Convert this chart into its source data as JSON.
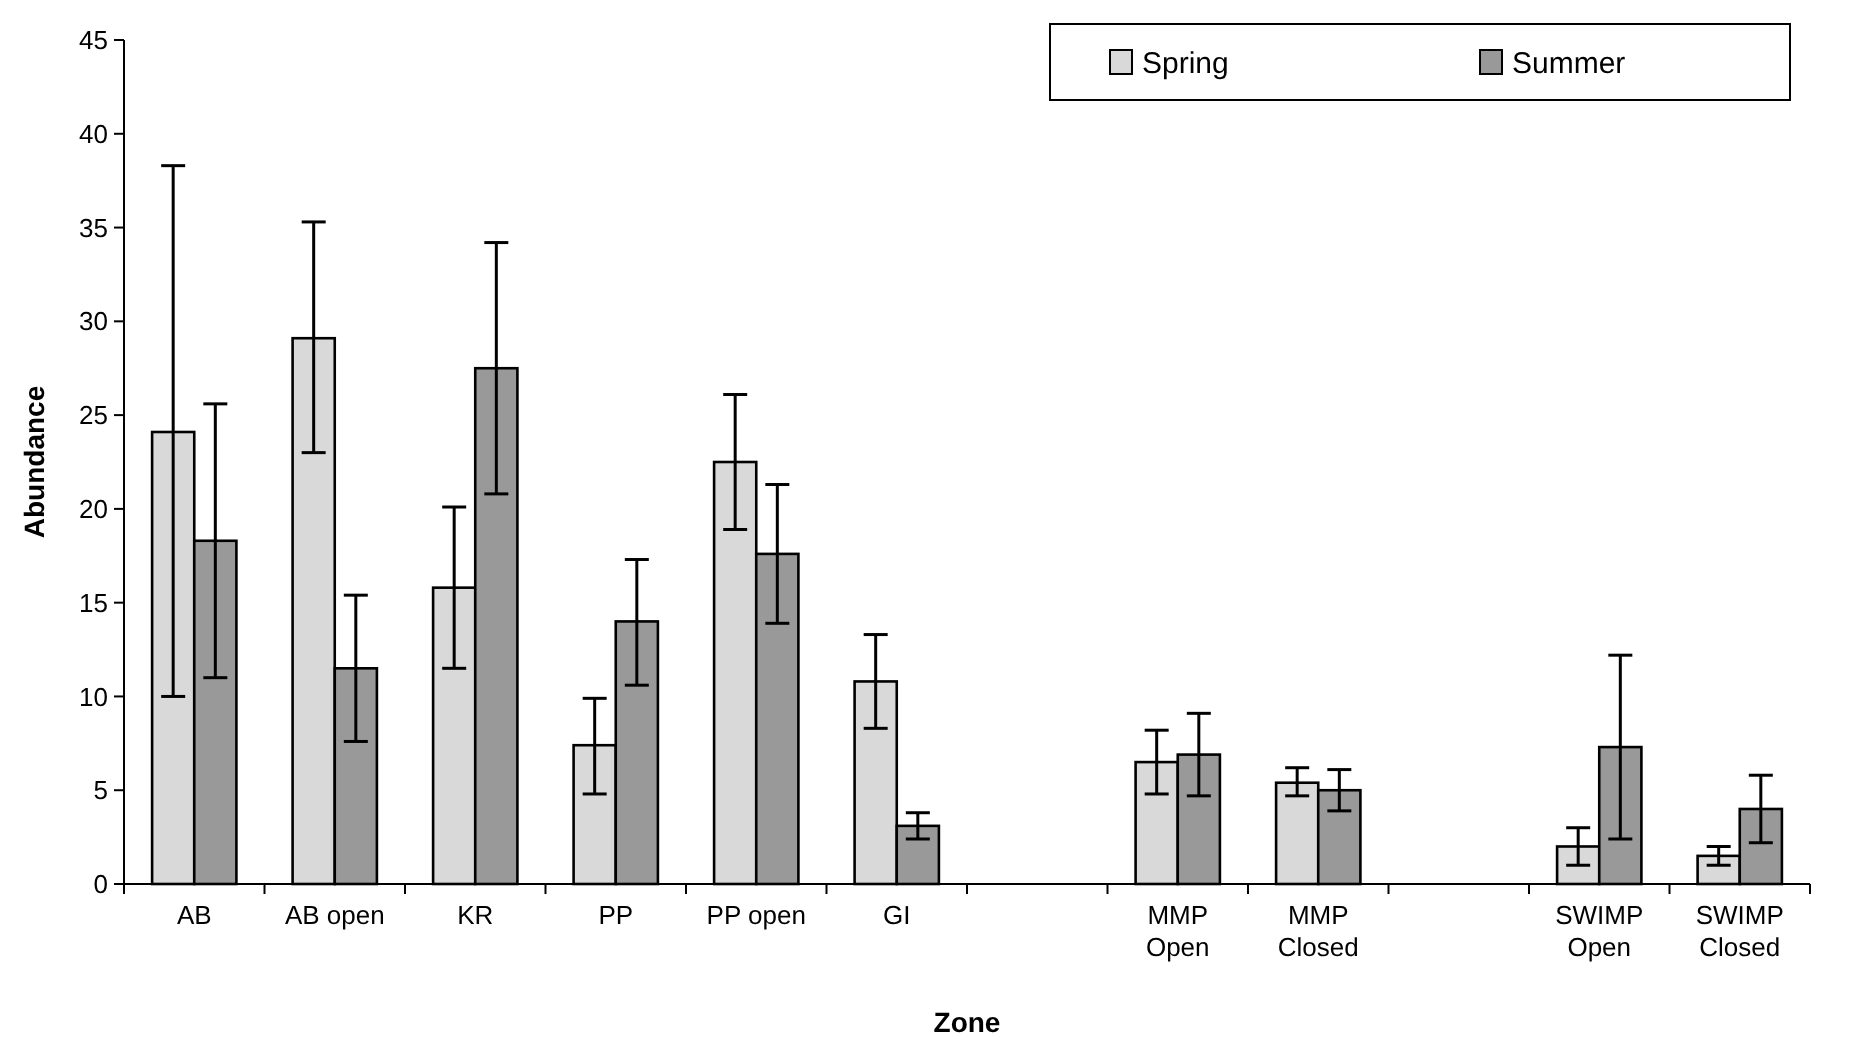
{
  "chart_data": {
    "type": "bar",
    "xlabel": "Zone",
    "ylabel": "Abundance",
    "categories": [
      "AB",
      "AB open",
      "KR",
      "PP",
      "PP open",
      "GI",
      null,
      "MMP Open",
      "MMP Closed",
      null,
      "SWIMP Open",
      "SWIMP Closed"
    ],
    "series": [
      {
        "name": "Spring",
        "color": "#d9d9d9",
        "values": [
          24.1,
          29.1,
          15.8,
          7.4,
          22.5,
          10.8,
          null,
          6.5,
          5.4,
          null,
          2.0,
          1.5
        ],
        "errors": [
          [
            10,
            38.3
          ],
          [
            23,
            35.3
          ],
          [
            11.5,
            20.1
          ],
          [
            4.8,
            9.9
          ],
          [
            18.9,
            26.1
          ],
          [
            8.3,
            13.3
          ],
          null,
          [
            4.8,
            8.2
          ],
          [
            4.7,
            6.2
          ],
          null,
          [
            1.0,
            3.0
          ],
          [
            1.0,
            2.0
          ]
        ]
      },
      {
        "name": "Summer",
        "color": "#999999",
        "values": [
          18.3,
          11.5,
          27.5,
          14,
          17.6,
          3.1,
          null,
          6.9,
          5.0,
          null,
          7.3,
          4.0
        ],
        "errors": [
          [
            11,
            25.6
          ],
          [
            7.6,
            15.4
          ],
          [
            20.8,
            34.2
          ],
          [
            10.6,
            17.3
          ],
          [
            13.9,
            21.3
          ],
          [
            2.4,
            3.8
          ],
          null,
          [
            4.7,
            9.1
          ],
          [
            3.9,
            6.1
          ],
          null,
          [
            2.4,
            12.2
          ],
          [
            2.2,
            5.8
          ]
        ]
      }
    ],
    "ylim": [
      0,
      45
    ],
    "yticks": [
      0,
      5,
      10,
      15,
      20,
      25,
      30,
      35,
      40,
      45
    ],
    "legend": "top right"
  }
}
